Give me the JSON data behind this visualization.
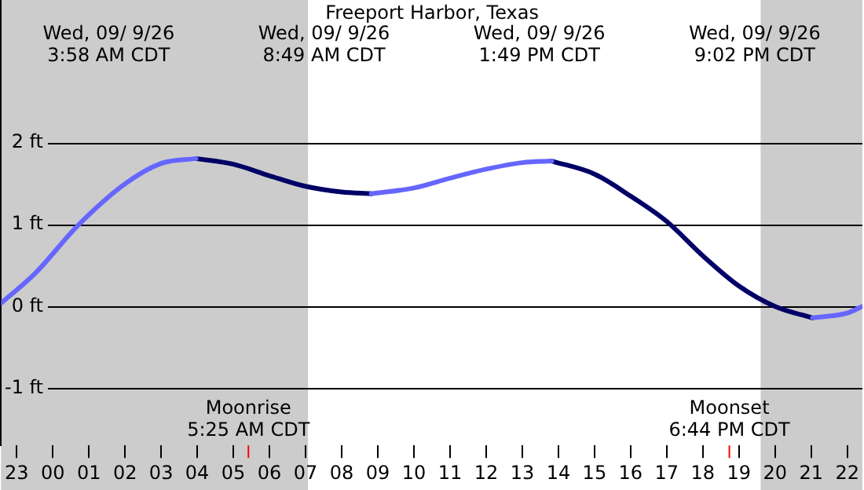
{
  "chart_data": {
    "type": "line",
    "title": "Freeport Harbor, Texas",
    "xlim": [
      "--09-08T22:34",
      "--09-09T22:25"
    ],
    "xticks": [
      {
        "value": "--09-08T23:00",
        "label": "23"
      },
      {
        "value": "--09-09T00:00",
        "label": "00"
      },
      {
        "value": "--09-09T01:00",
        "label": "01"
      },
      {
        "value": "--09-09T02:00",
        "label": "02"
      },
      {
        "value": "--09-09T03:00",
        "label": "03"
      },
      {
        "value": "--09-09T04:00",
        "label": "04"
      },
      {
        "value": "--09-09T05:00",
        "label": "05"
      },
      {
        "value": "--09-09T06:00",
        "label": "06"
      },
      {
        "value": "--09-09T07:00",
        "label": "07"
      },
      {
        "value": "--09-09T08:00",
        "label": "08"
      },
      {
        "value": "--09-09T09:00",
        "label": "09"
      },
      {
        "value": "--09-09T10:00",
        "label": "10"
      },
      {
        "value": "--09-09T11:00",
        "label": "11"
      },
      {
        "value": "--09-09T12:00",
        "label": "12"
      },
      {
        "value": "--09-09T13:00",
        "label": "13"
      },
      {
        "value": "--09-09T14:00",
        "label": "14"
      },
      {
        "value": "--09-09T15:00",
        "label": "15"
      },
      {
        "value": "--09-09T16:00",
        "label": "16"
      },
      {
        "value": "--09-09T17:00",
        "label": "17"
      },
      {
        "value": "--09-09T18:00",
        "label": "18"
      },
      {
        "value": "--09-09T19:00",
        "label": "19"
      },
      {
        "value": "--09-09T20:00",
        "label": "20"
      },
      {
        "value": "--09-09T21:00",
        "label": "21"
      },
      {
        "value": "--09-09T22:00",
        "label": "22"
      }
    ],
    "ylim": [
      -1.7,
      3.75
    ],
    "yticks": [
      {
        "value": -1,
        "label": "-1 ft"
      },
      {
        "value": 0,
        "label": "0 ft"
      },
      {
        "value": 1,
        "label": "1 ft"
      },
      {
        "value": 2,
        "label": "2 ft"
      }
    ],
    "series": [
      {
        "color": "#6666ff",
        "x": [
          "--09-08T22:34",
          "--09-08T23:30",
          "--09-09T00:43",
          "--09-09T02:00",
          "--09-09T03:00",
          "--09-09T03:58",
          "--09-09T06:00",
          "--09-09T08:49",
          "--09-09T10:00",
          "--09-09T11:00",
          "--09-09T12:00",
          "--09-09T13:00",
          "--09-09T13:49",
          "--09-09T17:00",
          "--09-09T21:02",
          "--09-09T22:00",
          "--09-09T22:25"
        ],
        "values": [
          0.04,
          0.4,
          1.0,
          1.5,
          1.75,
          1.81,
          null,
          1.38,
          1.45,
          1.57,
          1.68,
          1.76,
          1.78,
          null,
          -0.14,
          -0.08,
          0.0
        ]
      },
      {
        "color": "#000066",
        "x": [
          "--09-09T03:58",
          "--09-09T05:00",
          "--09-09T06:00",
          "--09-09T07:00",
          "--09-09T08:00",
          "--09-09T08:49",
          "--09-09T11:00",
          "--09-09T13:49",
          "--09-09T15:00",
          "--09-09T16:00",
          "--09-09T17:00",
          "--09-09T18:00",
          "--09-09T19:00",
          "--09-09T20:00",
          "--09-09T21:02"
        ],
        "values": [
          1.81,
          1.74,
          1.6,
          1.47,
          1.4,
          1.38,
          null,
          1.78,
          1.62,
          1.35,
          1.04,
          0.62,
          0.25,
          0.0,
          -0.14
        ]
      }
    ],
    "bands": [
      {
        "axis": "x",
        "from": "--09-08T22:34",
        "to": "--09-09T07:04",
        "color": "#cccccc"
      },
      {
        "axis": "x",
        "from": "--09-09T19:36",
        "to": "--09-09T22:25",
        "color": "#cccccc"
      }
    ],
    "ref_lines": [
      {
        "axis": "x",
        "value": "--09-09T05:25",
        "label": "Moonrise\n5:25 AM CDT",
        "color": "#ff0000"
      },
      {
        "axis": "x",
        "value": "--09-09T18:44",
        "label": "Moonset\n6:44 PM CDT",
        "color": "#ff0000"
      }
    ],
    "annotations": [
      "Wed, 09/ 9/26\n3:58 AM CDT",
      "Wed, 09/ 9/26\n8:49 AM CDT",
      "Wed, 09/ 9/26\n1:49 PM CDT",
      "Wed, 09/ 9/26\n9:02 PM CDT"
    ],
    "grid": "y",
    "legend": false,
    "marker": "none",
    "line_style": "solid"
  }
}
